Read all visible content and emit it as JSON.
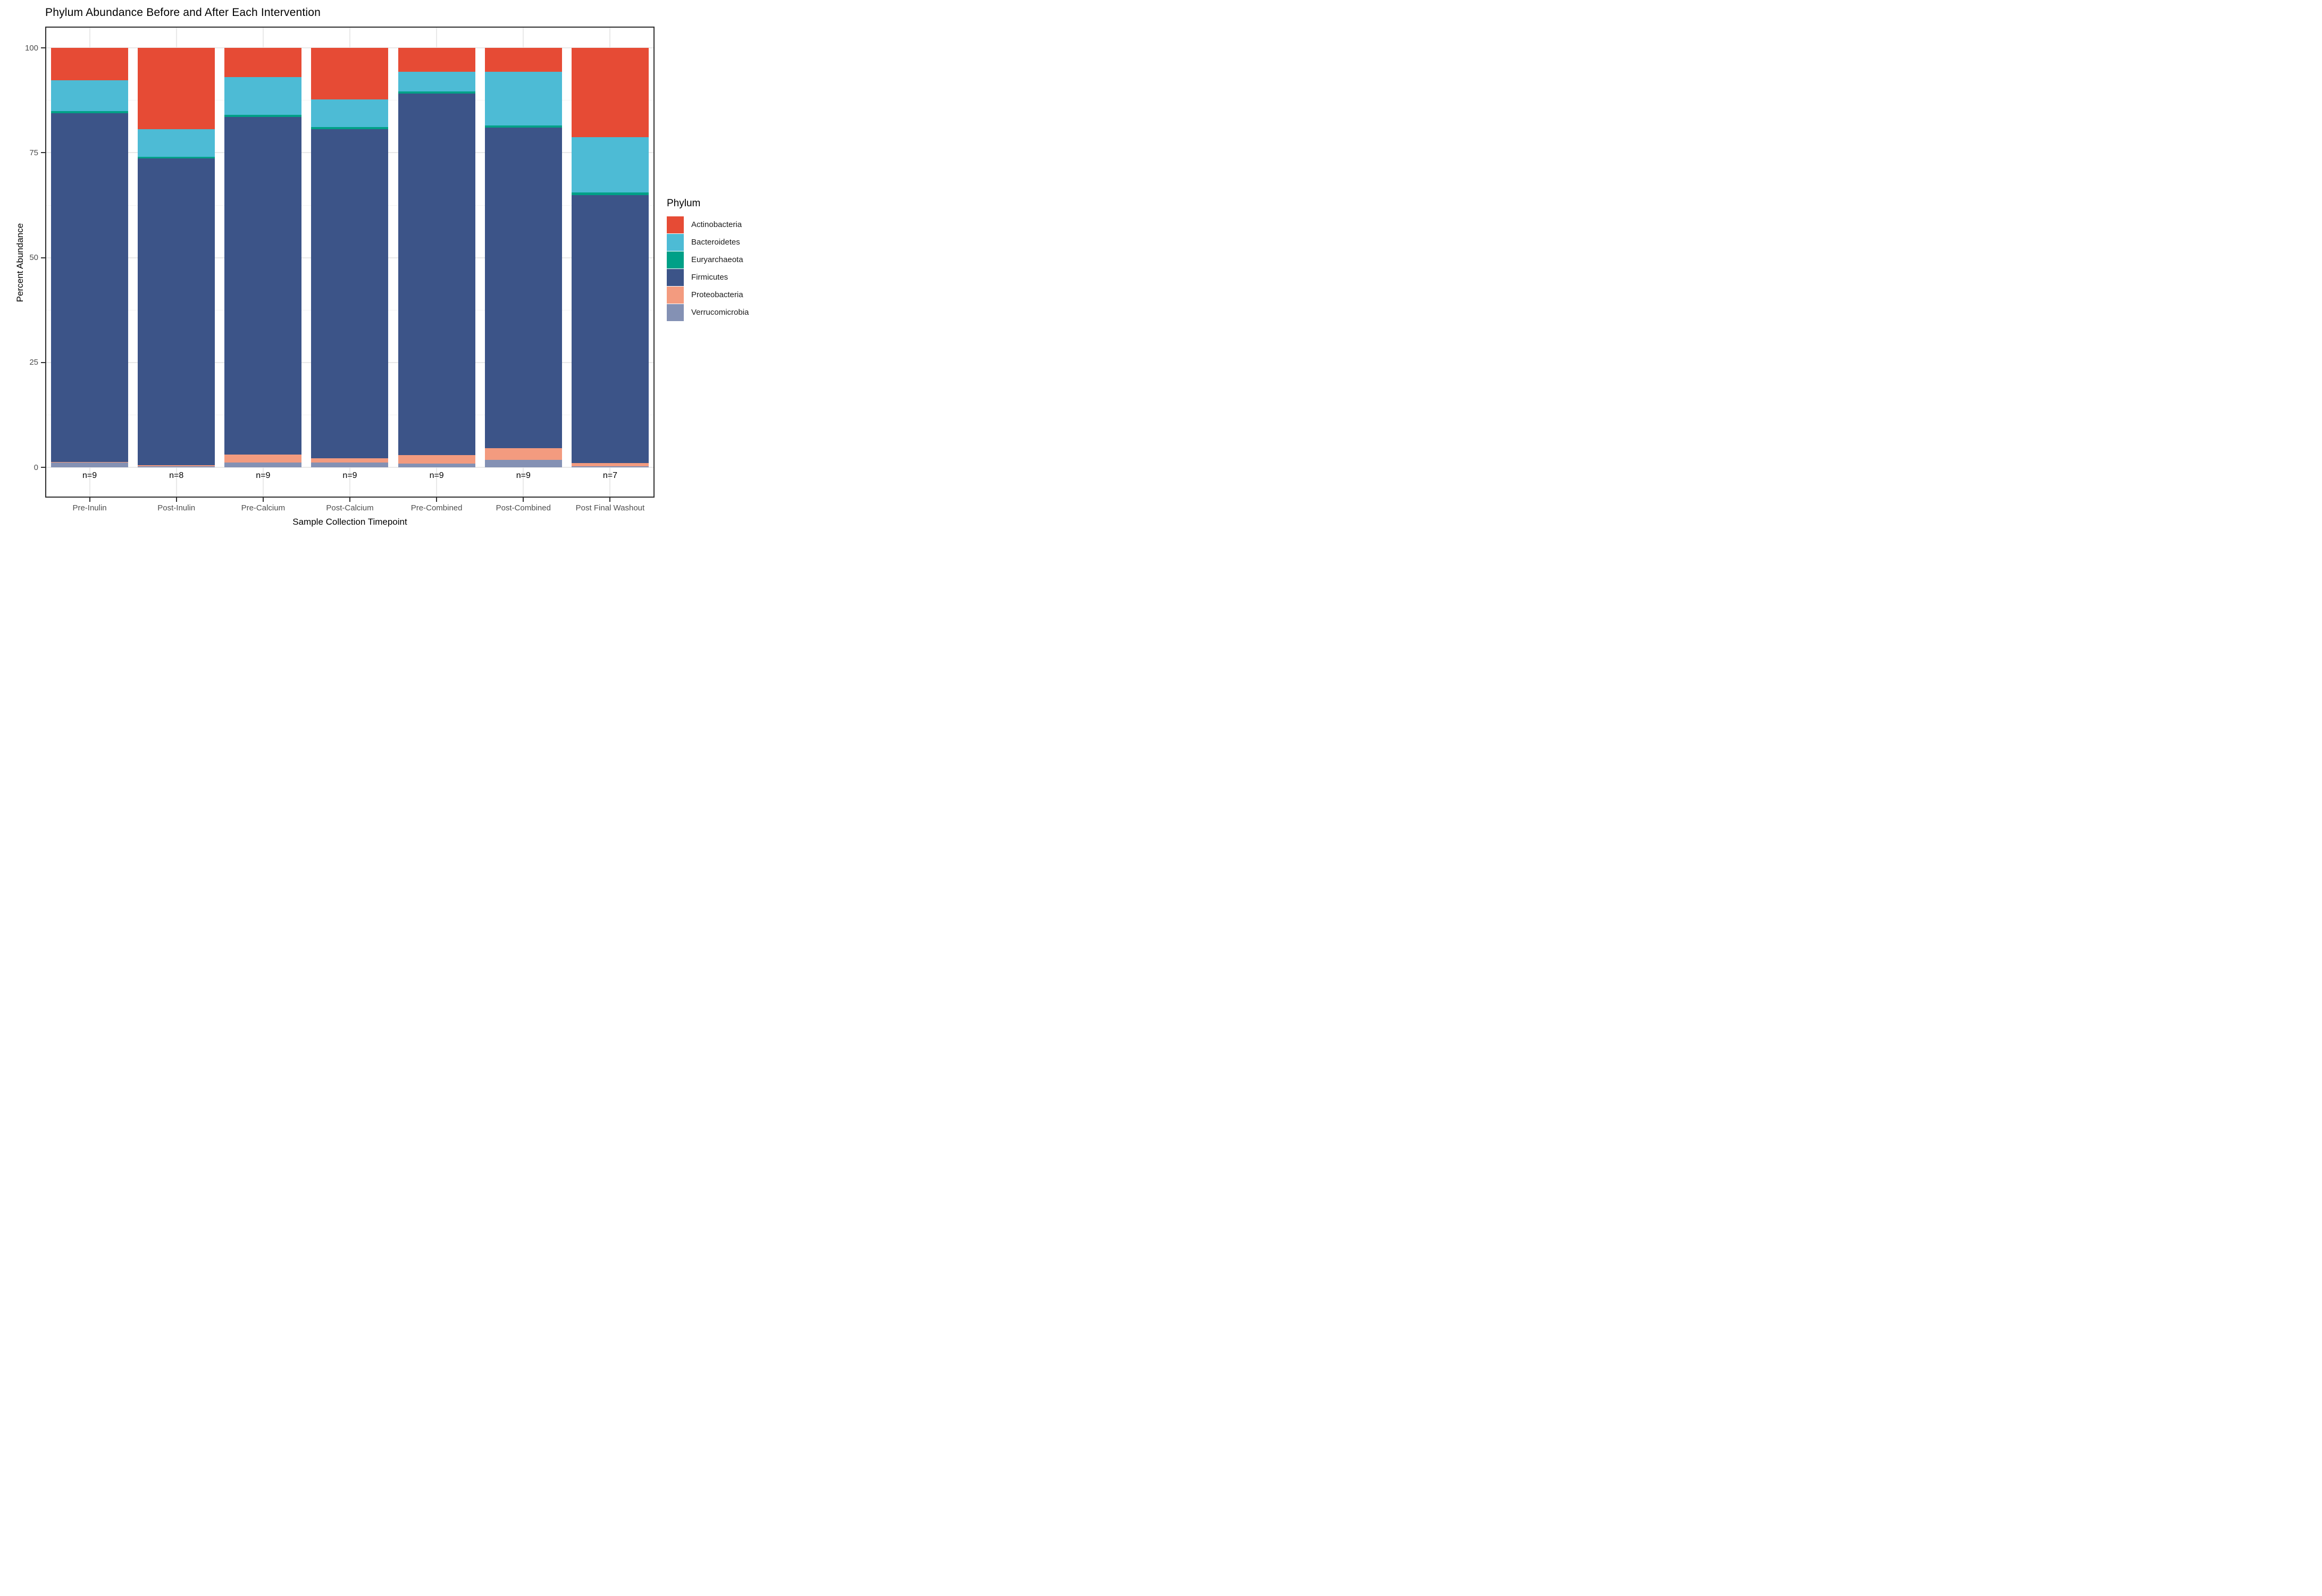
{
  "title": "Phylum Abundance Before and After Each Intervention",
  "axes": {
    "x_title": "Sample Collection Timepoint",
    "y_title": "Percent Abundance",
    "y_tick_labels": [
      "0",
      "25",
      "50",
      "75",
      "100"
    ],
    "y_tick_values": [
      0,
      25,
      50,
      75,
      100
    ],
    "y_minor_values": [
      12.5,
      37.5,
      62.5,
      87.5
    ]
  },
  "legend": {
    "title": "Phylum",
    "position": "right"
  },
  "chart_data": {
    "type": "bar",
    "stacked": true,
    "title": "Phylum Abundance Before and After Each Intervention",
    "xlabel": "Sample Collection Timepoint",
    "ylabel": "Percent Abundance",
    "ylim": [
      0,
      100
    ],
    "grid": true,
    "legend_position": "right",
    "categories": [
      "Pre-Inulin",
      "Post-Inulin",
      "Pre-Calcium",
      "Post-Calcium",
      "Pre-Combined",
      "Post-Combined",
      "Post Final Washout"
    ],
    "n_labels": [
      "n=9",
      "n=8",
      "n=9",
      "n=9",
      "n=9",
      "n=9",
      "n=7"
    ],
    "series": [
      {
        "name": "Actinobacteria",
        "color": "#E64B35",
        "values": [
          7.7,
          19.4,
          6.9,
          12.3,
          5.7,
          5.7,
          21.3
        ]
      },
      {
        "name": "Bacteroidetes",
        "color": "#4DBBD5",
        "values": [
          7.4,
          6.5,
          9.0,
          6.6,
          4.7,
          12.8,
          13.1
        ]
      },
      {
        "name": "Euryarchaeota",
        "color": "#00A087",
        "values": [
          0.5,
          0.4,
          0.5,
          0.4,
          0.5,
          0.5,
          0.7
        ]
      },
      {
        "name": "Firmicutes",
        "color": "#3C5488",
        "values": [
          83.1,
          73.2,
          80.5,
          78.6,
          86.2,
          76.4,
          63.9
        ]
      },
      {
        "name": "Proteobacteria",
        "color": "#F39B7F",
        "values": [
          0.2,
          0.2,
          2.0,
          0.9,
          2.0,
          2.8,
          0.7
        ]
      },
      {
        "name": "Verrucomicrobia",
        "color": "#8491B4",
        "values": [
          1.1,
          0.3,
          1.1,
          1.2,
          0.9,
          1.8,
          0.3
        ]
      }
    ],
    "stack_order_top_to_bottom": [
      "Actinobacteria",
      "Bacteroidetes",
      "Euryarchaeota",
      "Firmicutes",
      "Proteobacteria",
      "Verrucomicrobia"
    ]
  },
  "colors": {
    "Actinobacteria": "#E64B35",
    "Bacteroidetes": "#4DBBD5",
    "Euryarchaeota": "#00A087",
    "Firmicutes": "#3C5488",
    "Proteobacteria": "#F39B7F",
    "Verrucomicrobia": "#8491B4",
    "grid_major": "#e9e9e9",
    "panel_border": "#2e2e2e",
    "tick_text": "#4d4d4d"
  }
}
